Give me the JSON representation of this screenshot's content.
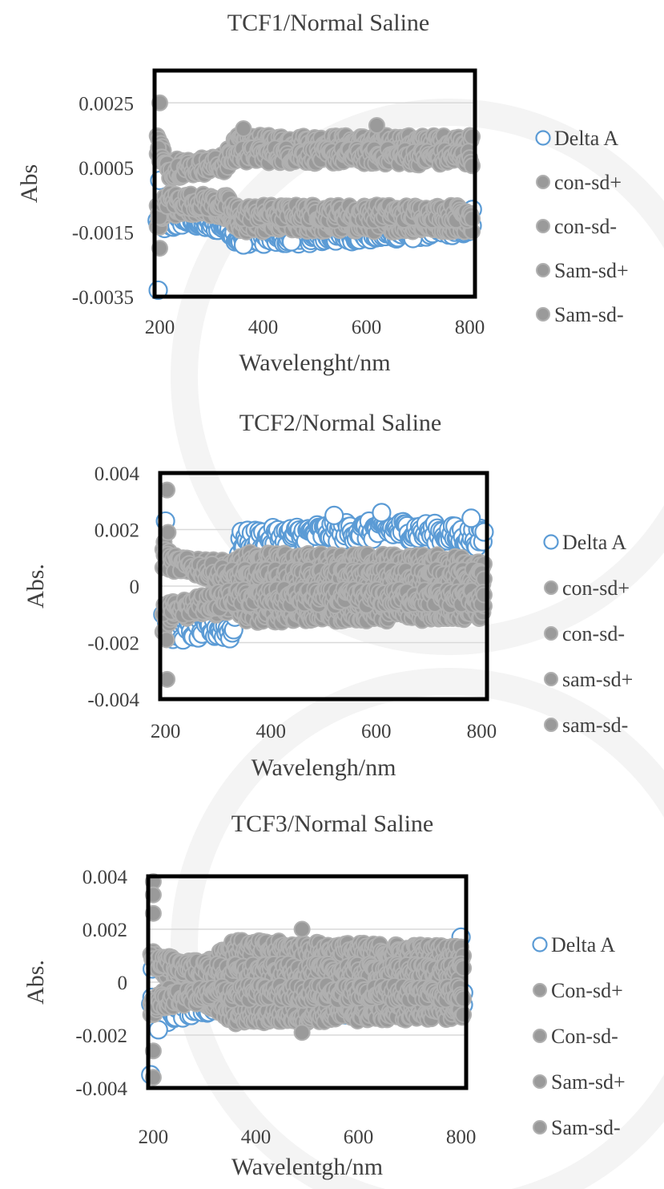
{
  "colors": {
    "delta": "#5B9BD5",
    "grey_fill": "#9a9a9a",
    "grey_edge": "#b0b0b0",
    "frame": "#000000",
    "grid": "#d9d9d9",
    "text": "#404040"
  },
  "chart_data": [
    {
      "type": "scatter",
      "title": "TCF1/Normal Saline",
      "xlabel": "Wavelenght/nm",
      "ylabel": "Abs",
      "xlim": [
        190,
        810
      ],
      "ylim": [
        -0.0035,
        0.0035
      ],
      "xticks": [
        "200",
        "400",
        "600",
        "800"
      ],
      "xtick_values": [
        200,
        400,
        600,
        800
      ],
      "yticks": [
        "0.0025",
        "0.0005",
        "-0.0015",
        "-0.0035"
      ],
      "ytick_values": [
        0.0025,
        0.0005,
        -0.0015,
        -0.0035
      ],
      "grid": true,
      "legend_position": "right",
      "series": [
        {
          "name": "Delta A",
          "style": "hollow",
          "profile": [
            [
              195,
              -0.0012
            ],
            [
              215,
              -0.0013
            ],
            [
              250,
              -0.0011
            ],
            [
              300,
              -0.0013
            ],
            [
              330,
              -0.0013
            ],
            [
              350,
              -0.0017
            ],
            [
              450,
              -0.0017
            ],
            [
              600,
              -0.0016
            ],
            [
              800,
              -0.0014
            ]
          ],
          "spread": 0.00018,
          "extra": [
            [
              197,
              -0.0033
            ],
            [
              200,
              0.0001
            ],
            [
              362,
              -0.0019
            ],
            [
              690,
              -0.0017
            ],
            [
              455,
              -0.0018
            ],
            [
              805,
              -0.0008
            ]
          ]
        },
        {
          "name": "con-sd+",
          "style": "filled",
          "profile": [
            [
              195,
              0.0014
            ],
            [
              215,
              0.0006
            ],
            [
              300,
              0.0006
            ],
            [
              330,
              0.0009
            ],
            [
              350,
              0.0013
            ],
            [
              800,
              0.0013
            ]
          ],
          "spread": 0.0002,
          "extra": [
            [
              200,
              0.0025
            ],
            [
              362,
              0.0017
            ],
            [
              620,
              0.0018
            ]
          ]
        },
        {
          "name": "con-sd-",
          "style": "filled",
          "profile": [
            [
              195,
              -0.0013
            ],
            [
              215,
              -0.0008
            ],
            [
              300,
              -0.0008
            ],
            [
              330,
              -0.001
            ],
            [
              350,
              -0.0013
            ],
            [
              800,
              -0.0013
            ]
          ],
          "spread": 0.0002,
          "extra": [
            [
              200,
              -0.002
            ]
          ]
        },
        {
          "name": "Sam-sd+",
          "style": "filled",
          "profile": [
            [
              195,
              0.001
            ],
            [
              215,
              0.0004
            ],
            [
              330,
              0.0006
            ],
            [
              350,
              0.0009
            ],
            [
              800,
              0.0008
            ]
          ],
          "spread": 0.00025,
          "extra": []
        },
        {
          "name": "Sam-sd-",
          "style": "filled",
          "profile": [
            [
              195,
              -0.0009
            ],
            [
              215,
              -0.0005
            ],
            [
              330,
              -0.0006
            ],
            [
              350,
              -0.0009
            ],
            [
              800,
              -0.0009
            ]
          ],
          "spread": 0.00025,
          "extra": []
        }
      ]
    },
    {
      "type": "scatter",
      "title": "TCF2/Normal Saline",
      "xlabel": "Wavelengh/nm",
      "ylabel": "Abs.",
      "xlim": [
        190,
        810
      ],
      "ylim": [
        -0.004,
        0.004
      ],
      "xticks": [
        "200",
        "400",
        "600",
        "800"
      ],
      "xtick_values": [
        200,
        400,
        600,
        800
      ],
      "yticks": [
        "0.004",
        "0.002",
        "0",
        "-0.002",
        "-0.004"
      ],
      "ytick_values": [
        0.004,
        0.002,
        0,
        -0.002,
        -0.004
      ],
      "grid": true,
      "legend_position": "right",
      "series": [
        {
          "name": "Delta A",
          "style": "hollow",
          "profile": [
            [
              195,
              -0.0008
            ],
            [
              215,
              -0.0016
            ],
            [
              300,
              -0.0015
            ],
            [
              330,
              -0.0016
            ],
            [
              340,
              0.0016
            ],
            [
              500,
              0.0019
            ],
            [
              650,
              0.002
            ],
            [
              800,
              0.0017
            ]
          ],
          "spread": 0.00035,
          "extra": [
            [
              200,
              0.0023
            ],
            [
              202,
              0.0012
            ],
            [
              610,
              0.0026
            ],
            [
              520,
              0.0025
            ],
            [
              780,
              0.0024
            ]
          ]
        },
        {
          "name": "con-sd+",
          "style": "filled",
          "profile": [
            [
              195,
              0.0015
            ],
            [
              215,
              0.0008
            ],
            [
              330,
              0.0006
            ],
            [
              350,
              0.0009
            ],
            [
              800,
              0.0008
            ]
          ],
          "spread": 0.0003,
          "extra": [
            [
              203,
              0.0034
            ],
            [
              205,
              0.0019
            ]
          ]
        },
        {
          "name": "con-sd-",
          "style": "filled",
          "profile": [
            [
              195,
              -0.0015
            ],
            [
              215,
              -0.0009
            ],
            [
              330,
              -0.0007
            ],
            [
              350,
              -0.001
            ],
            [
              800,
              -0.0009
            ]
          ],
          "spread": 0.0003,
          "extra": [
            [
              203,
              -0.0033
            ],
            [
              202,
              -0.0019
            ]
          ]
        },
        {
          "name": "sam-sd+",
          "style": "filled",
          "profile": [
            [
              195,
              0.0009
            ],
            [
              330,
              0.0003
            ],
            [
              800,
              0.0003
            ]
          ],
          "spread": 0.0003,
          "extra": []
        },
        {
          "name": "sam-sd-",
          "style": "filled",
          "profile": [
            [
              195,
              -0.0009
            ],
            [
              330,
              -0.0004
            ],
            [
              800,
              -0.0004
            ]
          ],
          "spread": 0.0003,
          "extra": []
        }
      ]
    },
    {
      "type": "scatter",
      "title": "TCF3/Normal Saline",
      "xlabel": "Wavelentgh/nm",
      "ylabel": "Abs.",
      "xlim": [
        190,
        810
      ],
      "ylim": [
        -0.004,
        0.004
      ],
      "xticks": [
        "200",
        "400",
        "600",
        "800"
      ],
      "xtick_values": [
        200,
        400,
        600,
        800
      ],
      "yticks": [
        "0.004",
        "0.002",
        "0",
        "-0.002",
        "-0.004"
      ],
      "ytick_values": [
        0.004,
        0.002,
        0,
        -0.002,
        -0.004
      ],
      "grid": true,
      "legend_position": "right",
      "series": [
        {
          "name": "Delta A",
          "style": "hollow",
          "profile": [
            [
              195,
              -0.0008
            ],
            [
              215,
              -0.0013
            ],
            [
              300,
              -0.0009
            ],
            [
              350,
              -0.001
            ],
            [
              800,
              -0.0009
            ]
          ],
          "spread": 0.0003,
          "extra": [
            [
              195,
              -0.0035
            ],
            [
              198,
              0.0005
            ],
            [
              800,
              0.0017
            ],
            [
              805,
              -0.0004
            ],
            [
              210,
              -0.0018
            ]
          ]
        },
        {
          "name": "Con-sd+",
          "style": "filled",
          "profile": [
            [
              195,
              0.0012
            ],
            [
              215,
              0.0004
            ],
            [
              300,
              0.0006
            ],
            [
              350,
              0.0013
            ],
            [
              800,
              0.0011
            ]
          ],
          "spread": 0.0003,
          "extra": [
            [
              200,
              0.0038
            ],
            [
              200,
              0.0033
            ],
            [
              200,
              0.0026
            ],
            [
              490,
              0.002
            ]
          ]
        },
        {
          "name": "Con-sd-",
          "style": "filled",
          "profile": [
            [
              195,
              -0.0012
            ],
            [
              215,
              -0.0005
            ],
            [
              300,
              -0.0006
            ],
            [
              350,
              -0.0013
            ],
            [
              800,
              -0.0011
            ]
          ],
          "spread": 0.0003,
          "extra": [
            [
              200,
              -0.0036
            ],
            [
              200,
              -0.0026
            ],
            [
              490,
              -0.0019
            ]
          ]
        },
        {
          "name": "Sam-sd+",
          "style": "filled",
          "profile": [
            [
              195,
              0.0008
            ],
            [
              330,
              0.0004
            ],
            [
              800,
              0.0004
            ]
          ],
          "spread": 0.0003,
          "extra": []
        },
        {
          "name": "Sam-sd-",
          "style": "filled",
          "profile": [
            [
              195,
              -0.0008
            ],
            [
              330,
              -0.0004
            ],
            [
              800,
              -0.0004
            ]
          ],
          "spread": 0.0003,
          "extra": []
        }
      ]
    }
  ]
}
